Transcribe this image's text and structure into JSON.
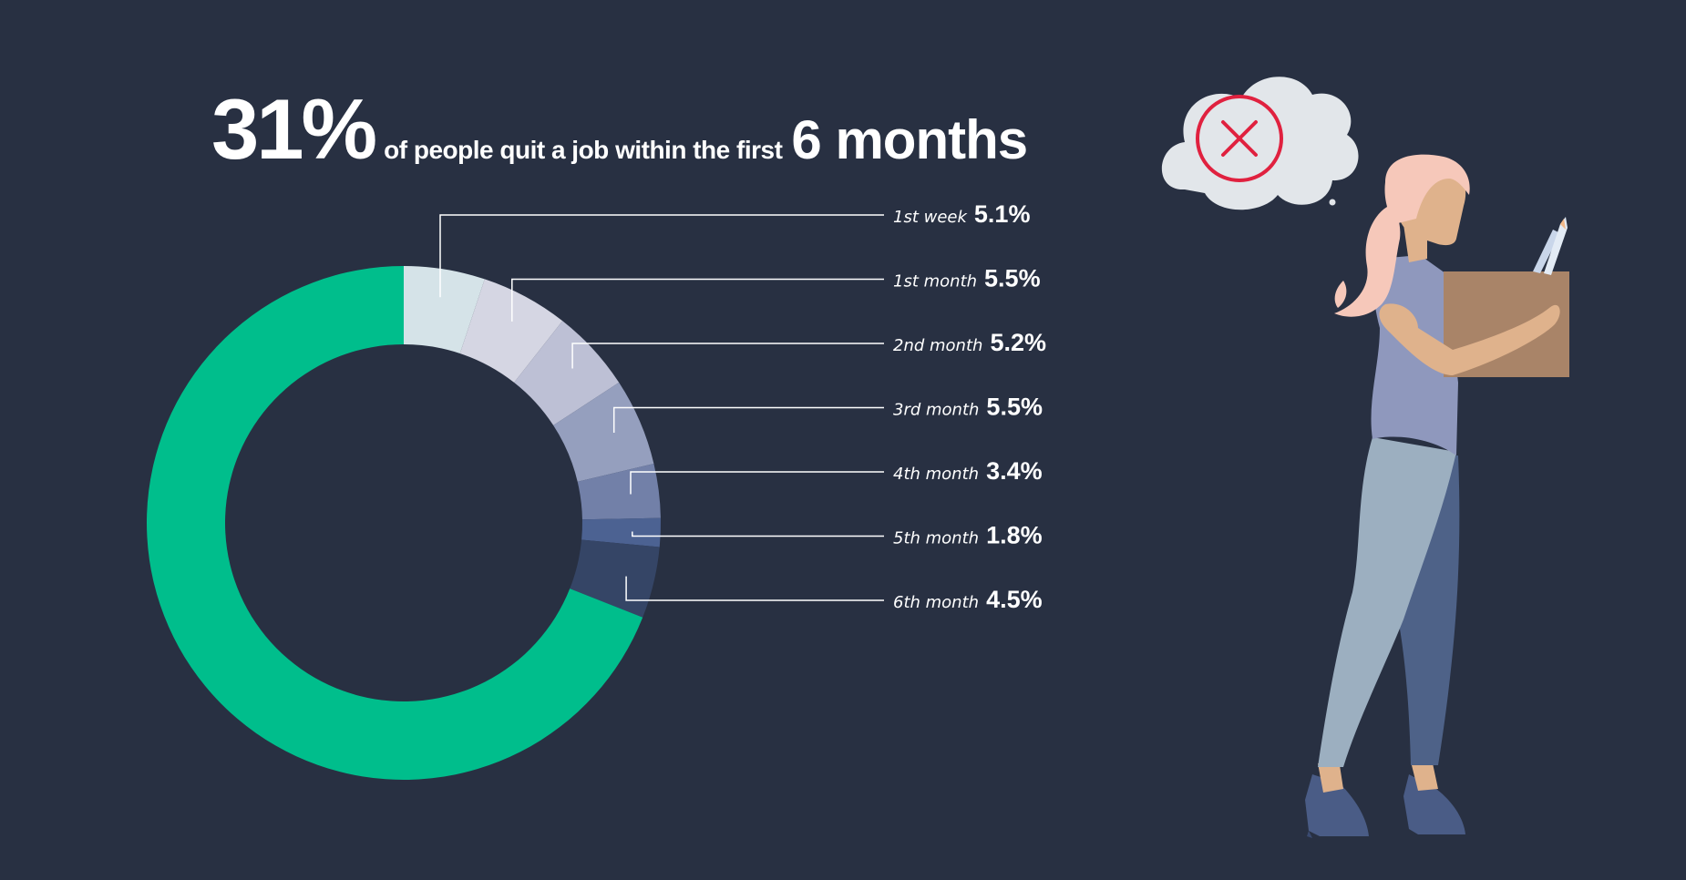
{
  "header": {
    "headline_value": "31%",
    "headline_text": "of people quit a job  within the first",
    "headline_period": "6 months"
  },
  "chart_data": {
    "type": "pie",
    "title": "31% of people quit a job  within the first 6 months",
    "categories": [
      "1st week",
      "1st month",
      "2nd month",
      "3rd month",
      "4th month",
      "5th month",
      "6th month"
    ],
    "values": [
      5.1,
      5.5,
      5.2,
      5.5,
      3.4,
      1.8,
      4.5
    ],
    "value_labels": [
      "5.1%",
      "5.5%",
      "5.2%",
      "5.5%",
      "3.4%",
      "1.8%",
      "4.5%"
    ],
    "remainder_value": 69.0,
    "colors": [
      "#d5e3e8",
      "#d5d6e3",
      "#bdc0d5",
      "#959fbe",
      "#7280a8",
      "#4c6292",
      "#354566"
    ],
    "remainder_color": "#00be8c",
    "style": "donut"
  },
  "colors": {
    "background": "#283042",
    "accent_green": "#00be8c",
    "thought_cross": "#e0213f",
    "box": "#a98468"
  },
  "illustration": {
    "figure": "woman-carrying-box-icon",
    "thought": "thought-bubble-cross-icon"
  }
}
